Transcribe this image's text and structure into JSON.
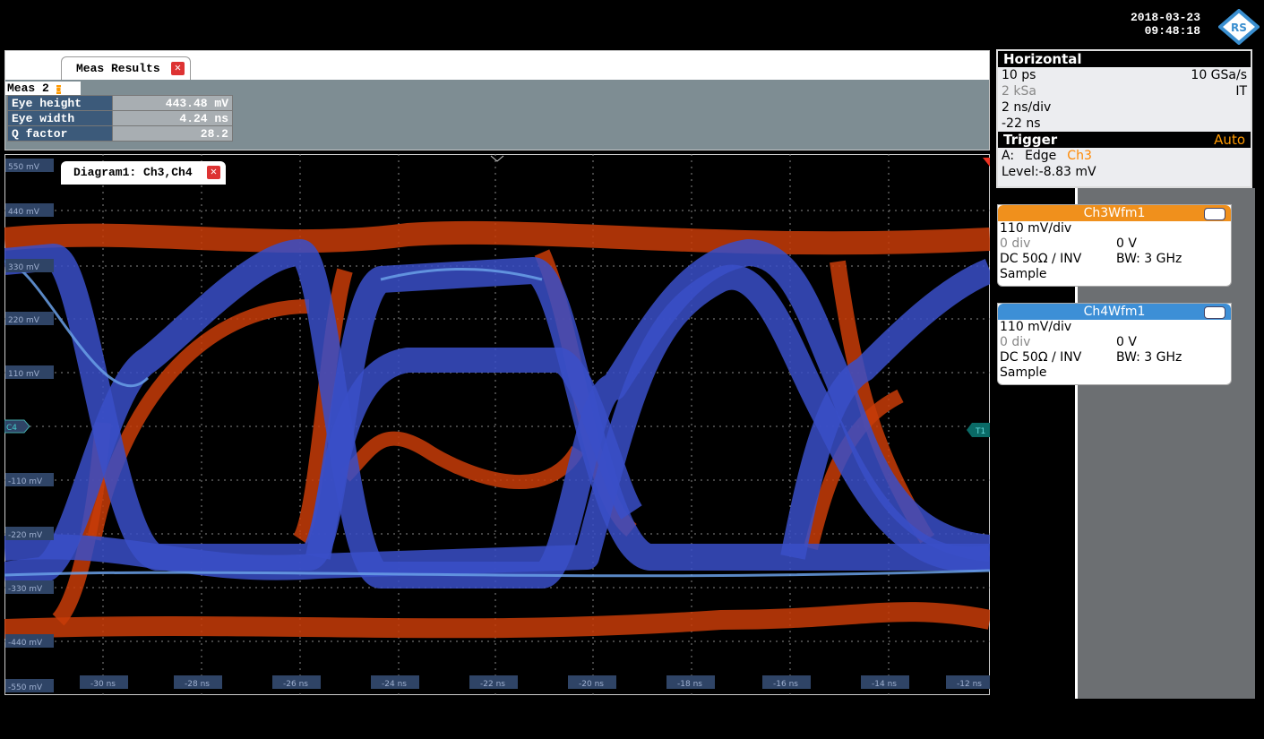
{
  "status": {
    "date": "2018-03-23",
    "time": "09:48:18"
  },
  "meas_results": {
    "tab": "Meas Results",
    "group": "Meas 2",
    "rows": [
      [
        "Eye height",
        "443.48 mV"
      ],
      [
        "Eye width",
        "4.24 ns"
      ],
      [
        "Q factor",
        "28.2"
      ]
    ]
  },
  "diagram": {
    "tab": "Diagram1: Ch3,Ch4",
    "y_labels": [
      "550 mV",
      "440 mV",
      "330 mV",
      "220 mV",
      "110 mV",
      "-110 mV",
      "-220 mV",
      "-330 mV",
      "-440 mV",
      "-550 mV"
    ],
    "x_labels": [
      "-30 ns",
      "-28 ns",
      "-26 ns",
      "-24 ns",
      "-22 ns",
      "-20 ns",
      "-18 ns",
      "-16 ns",
      "-14 ns",
      "-12 ns"
    ],
    "left_marker": "C4",
    "right_marker": "T1"
  },
  "horizontal": {
    "title": "Horizontal",
    "resolution": "10 ps",
    "sample_rate": "10 GSa/s",
    "record_length": "2 kSa",
    "mode": "IT",
    "scale": "2 ns/div",
    "position": "-22 ns"
  },
  "trigger": {
    "title": "Trigger",
    "mode": "Auto",
    "source_label": "A:",
    "type": "Edge",
    "channel": "Ch3",
    "level": "Level:-8.83 mV"
  },
  "channels": [
    {
      "name": "Ch3Wfm1",
      "scale": "110 mV/div",
      "offset": "0 div",
      "position": "0 V",
      "coupling": "DC 50Ω / INV",
      "bandwidth": "BW: 3 GHz",
      "acquisition": "Sample"
    },
    {
      "name": "Ch4Wfm1",
      "scale": "110 mV/div",
      "offset": "0 div",
      "position": "0 V",
      "coupling": "DC 50Ω / INV",
      "bandwidth": "BW: 3 GHz",
      "acquisition": "Sample"
    }
  ]
}
